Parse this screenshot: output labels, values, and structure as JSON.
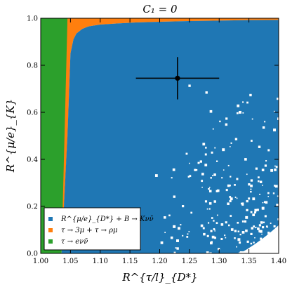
{
  "chart_data": {
    "type": "scatter",
    "title": "C₁ = 0",
    "xlabel": "R^{τ/l}_{D*}",
    "ylabel": "R^{μ/e}_{K}",
    "xlim": [
      1.0,
      1.4
    ],
    "ylim": [
      0.0,
      1.0
    ],
    "xticks": [
      "1.00",
      "1.05",
      "1.10",
      "1.15",
      "1.20",
      "1.25",
      "1.30",
      "1.35",
      "1.40"
    ],
    "yticks": [
      "0.0",
      "0.2",
      "0.4",
      "0.6",
      "0.8",
      "1.0"
    ],
    "grid": false,
    "legend_position": "bottom-left",
    "series": [
      {
        "name": "R^{μ/e}_{D*} + B → Kνν̄",
        "color": "#1f77b4",
        "region": "x from 1.05 to 1.40, y from 0.0 up to boundary"
      },
      {
        "name": "τ → 3μ + τ → ρμ",
        "color": "#ff7f0e",
        "region": "band above blue boundary, x 1.05–1.40, y up to 1.0"
      },
      {
        "name": "τ → eνν̄",
        "color": "#2ca02c",
        "region": "x 1.00–1.05, y 0.0–1.0"
      }
    ],
    "boundary": {
      "x": [
        1.035,
        1.045,
        1.05,
        1.055,
        1.06,
        1.07,
        1.08,
        1.1,
        1.13,
        1.16,
        1.2,
        1.25,
        1.3,
        1.35,
        1.4
      ],
      "y": [
        0.0,
        0.5,
        0.85,
        0.91,
        0.935,
        0.955,
        0.965,
        0.973,
        0.978,
        0.982,
        0.985,
        0.988,
        0.99,
        0.992,
        0.993
      ]
    },
    "measurement": {
      "x": 1.23,
      "y": 0.745,
      "xerr": [
        0.07,
        0.07
      ],
      "yerr": [
        0.09,
        0.09
      ]
    }
  }
}
